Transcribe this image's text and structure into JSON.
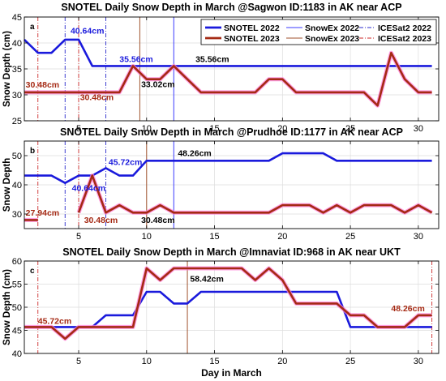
{
  "colors": {
    "snotel_2022": "#1a1adc",
    "snotel_2023": "#a52a14",
    "snowex_2022": "#3b3bff",
    "snowex_2023": "#a0522d",
    "icesat2_2022": "#2b2bcc",
    "icesat2_2023": "#cc2a2a",
    "snotel_2023_halo": "#ff7fd8"
  },
  "xlabel": "Day in March",
  "legend": [
    {
      "key": "snotel_2022",
      "label": "SNOTEL 2022",
      "style": "thick"
    },
    {
      "key": "snowex_2022",
      "label": "SnowEx 2022",
      "style": "thin"
    },
    {
      "key": "icesat2_2022",
      "label": "ICESat2 2022",
      "style": "dashdot"
    },
    {
      "key": "snotel_2023",
      "label": "SNOTEL 2023",
      "style": "thick"
    },
    {
      "key": "snowex_2023",
      "label": "SnowEx 2023",
      "style": "thin"
    },
    {
      "key": "icesat2_2023",
      "label": "ICESat2 2023",
      "style": "dashdot"
    }
  ],
  "chart_data": [
    {
      "type": "line",
      "panel_label": "a",
      "title": "SNOTEL Daily Snow Depth in March @Sagwon ID:1183 in AK near ACP",
      "ylabel": "Snow Depth (cm)",
      "xlim": [
        1,
        31.5
      ],
      "ylim": [
        25,
        45
      ],
      "xticks": [
        5,
        10,
        15,
        20,
        25,
        30
      ],
      "yticks": [
        25,
        30,
        35,
        40,
        45
      ],
      "grid": true,
      "legend_position": "top-right",
      "series": [
        {
          "name": "SNOTEL 2022",
          "key": "snotel_2022",
          "x": [
            1,
            2,
            3,
            4,
            5,
            6,
            7,
            8,
            9,
            10,
            11,
            12,
            13,
            14,
            15,
            16,
            17,
            18,
            19,
            20,
            21,
            22,
            23,
            24,
            25,
            26,
            27,
            28,
            29,
            30,
            31
          ],
          "y": [
            40.64,
            38.1,
            38.1,
            40.64,
            40.64,
            35.56,
            35.56,
            35.56,
            35.56,
            35.56,
            35.56,
            35.56,
            35.56,
            35.56,
            35.56,
            35.56,
            35.56,
            35.56,
            35.56,
            35.56,
            35.56,
            35.56,
            35.56,
            35.56,
            35.56,
            35.56,
            35.56,
            35.56,
            35.56,
            35.56,
            35.56
          ]
        },
        {
          "name": "SNOTEL 2023",
          "key": "snotel_2023",
          "x": [
            1,
            2,
            3,
            4,
            5,
            6,
            7,
            8,
            9,
            10,
            11,
            12,
            13,
            14,
            15,
            16,
            17,
            18,
            19,
            20,
            21,
            22,
            23,
            24,
            25,
            26,
            27,
            28,
            29,
            30,
            31
          ],
          "y": [
            30.48,
            30.48,
            30.48,
            30.48,
            30.48,
            30.48,
            30.48,
            30.48,
            35.56,
            33.02,
            33.02,
            35.56,
            33.02,
            30.48,
            30.48,
            30.48,
            30.48,
            30.48,
            33.02,
            33.02,
            30.48,
            30.48,
            30.48,
            30.48,
            30.48,
            30.48,
            27.94,
            38.1,
            33.02,
            30.48,
            30.48
          ]
        }
      ],
      "vlines": [
        {
          "key": "snowex_2022",
          "x": 12,
          "style": "thin"
        },
        {
          "key": "snowex_2023",
          "x": 9.5,
          "style": "thin"
        },
        {
          "key": "icesat2_2022",
          "x": 4,
          "style": "dashdot"
        },
        {
          "key": "icesat2_2022",
          "x": 7,
          "style": "dashdot"
        },
        {
          "key": "icesat2_2023",
          "x": 2,
          "style": "dashdot"
        },
        {
          "key": "icesat2_2023",
          "x": 5,
          "style": "dashdot"
        }
      ],
      "annotations": [
        {
          "text": "40.64cm",
          "x": 4.4,
          "y": 41.8,
          "key": "snotel_2022"
        },
        {
          "text": "35.56cm",
          "x": 8.0,
          "y": 36.3,
          "key": "snotel_2022"
        },
        {
          "text": "35.56cm",
          "x": 13.6,
          "y": 36.3,
          "key": "black"
        },
        {
          "text": "30.48cm",
          "x": 1.1,
          "y": 31.4,
          "key": "snotel_2023"
        },
        {
          "text": "30.48cm",
          "x": 5.1,
          "y": 29.0,
          "key": "snotel_2023"
        },
        {
          "text": "33.02cm",
          "x": 9.6,
          "y": 31.5,
          "key": "black"
        }
      ]
    },
    {
      "type": "line",
      "panel_label": "b",
      "title": "SNOTEL Daily Snow Depth in March @Prudhoe ID:1177 in AK near ACP",
      "ylabel": "Snow Depth",
      "xlim": [
        1,
        31.5
      ],
      "ylim": [
        25,
        55
      ],
      "xticks": [
        5,
        10,
        15,
        20,
        25,
        30
      ],
      "yticks": [
        30,
        40,
        50
      ],
      "grid": true,
      "series": [
        {
          "name": "SNOTEL 2022",
          "key": "snotel_2022",
          "x": [
            1,
            2,
            3,
            4,
            5,
            6,
            7,
            8,
            9,
            10,
            11,
            12,
            13,
            14,
            15,
            16,
            17,
            18,
            19,
            20,
            21,
            22,
            23,
            24,
            25,
            26,
            27,
            28,
            29,
            30,
            31
          ],
          "y": [
            43.18,
            43.18,
            43.18,
            40.64,
            43.18,
            43.18,
            45.72,
            43.18,
            43.18,
            48.26,
            48.26,
            48.26,
            48.26,
            48.26,
            48.26,
            48.26,
            48.26,
            48.26,
            48.26,
            50.8,
            50.8,
            50.8,
            50.8,
            48.26,
            48.26,
            48.26,
            48.26,
            48.26,
            48.26,
            48.26,
            48.26
          ]
        },
        {
          "name": "SNOTEL 2023",
          "key": "snotel_2023",
          "x": [
            5,
            6,
            7,
            8,
            9,
            10,
            11,
            12,
            13,
            14,
            15,
            16,
            17,
            18,
            19,
            20,
            21,
            22,
            23,
            24,
            25,
            26,
            27,
            28,
            29,
            30,
            31
          ],
          "y": [
            30.48,
            43.18,
            30.48,
            33.02,
            30.48,
            30.48,
            33.02,
            30.48,
            30.48,
            30.48,
            30.48,
            30.48,
            30.48,
            30.48,
            30.48,
            33.02,
            33.02,
            33.02,
            30.48,
            33.02,
            30.48,
            33.02,
            33.02,
            33.02,
            30.48,
            33.02,
            30.48
          ]
        },
        {
          "name": "",
          "key": "snotel_2023",
          "x": [
            1,
            2
          ],
          "y": [
            27.94,
            27.94
          ]
        }
      ],
      "vlines": [
        {
          "key": "snowex_2022",
          "x": 12,
          "style": "thin"
        },
        {
          "key": "snowex_2023",
          "x": 10,
          "style": "thin"
        },
        {
          "key": "icesat2_2022",
          "x": 4,
          "style": "dashdot"
        },
        {
          "key": "icesat2_2022",
          "x": 7,
          "style": "dashdot"
        },
        {
          "key": "icesat2_2023",
          "x": 2,
          "style": "dashdot"
        },
        {
          "key": "icesat2_2023",
          "x": 5,
          "style": "dashdot"
        }
      ],
      "annotations": [
        {
          "text": "48.26cm",
          "x": 12.3,
          "y": 49.8,
          "key": "black"
        },
        {
          "text": "45.72cm",
          "x": 7.2,
          "y": 46.8,
          "key": "snotel_2022"
        },
        {
          "text": "40.64cm",
          "x": 4.5,
          "y": 37.9,
          "key": "snotel_2022"
        },
        {
          "text": "27.94cm",
          "x": 1.1,
          "y": 29.5,
          "key": "snotel_2023"
        },
        {
          "text": "30.48cm",
          "x": 5.4,
          "y": 26.9,
          "key": "snotel_2023"
        },
        {
          "text": "30.48cm",
          "x": 9.6,
          "y": 26.9,
          "key": "black"
        }
      ]
    },
    {
      "type": "line",
      "panel_label": "c",
      "title": "SNOTEL Daily Snow Depth in March @Imnaviat ID:968 in AK near UKT",
      "ylabel": "Snow Depth (cm)",
      "xlabel": "Day in March",
      "xlim": [
        1,
        31.5
      ],
      "ylim": [
        40,
        60
      ],
      "xticks": [
        5,
        10,
        15,
        20,
        25,
        30
      ],
      "yticks": [
        40,
        45,
        50,
        55,
        60
      ],
      "grid": true,
      "series": [
        {
          "name": "SNOTEL 2022",
          "key": "snotel_2022",
          "x": [
            1,
            2,
            3,
            4,
            5,
            6,
            7,
            8,
            9,
            10,
            11,
            12,
            13,
            14,
            15,
            16,
            17,
            18,
            19,
            20,
            21,
            22,
            23,
            24,
            25,
            26,
            27,
            28,
            29,
            30,
            31
          ],
          "y": [
            45.72,
            45.72,
            45.72,
            45.72,
            45.72,
            45.72,
            48.26,
            48.26,
            48.26,
            53.34,
            53.34,
            50.8,
            50.8,
            53.34,
            53.34,
            53.34,
            53.34,
            53.34,
            53.34,
            53.34,
            53.34,
            53.34,
            53.34,
            53.34,
            45.72,
            45.72,
            45.72,
            45.72,
            45.72,
            45.72,
            45.72
          ]
        },
        {
          "name": "SNOTEL 2023",
          "key": "snotel_2023",
          "x": [
            1,
            2,
            3,
            4,
            5,
            6,
            7,
            8,
            9,
            10,
            11,
            12,
            13,
            14,
            15,
            16,
            17,
            18,
            19,
            20,
            21,
            22,
            23,
            24,
            25,
            26,
            27,
            28,
            29,
            30,
            31
          ],
          "y": [
            45.72,
            45.72,
            45.72,
            43.18,
            45.72,
            45.72,
            45.72,
            45.72,
            45.72,
            58.42,
            55.88,
            58.42,
            58.42,
            58.42,
            58.42,
            58.42,
            58.42,
            55.88,
            58.42,
            55.88,
            50.8,
            50.8,
            50.8,
            50.8,
            48.26,
            48.26,
            45.72,
            45.72,
            45.72,
            48.26,
            48.26
          ]
        }
      ],
      "vlines": [
        {
          "key": "snowex_2023",
          "x": 13,
          "style": "thin"
        },
        {
          "key": "icesat2_2023",
          "x": 2,
          "style": "dashdot"
        },
        {
          "key": "icesat2_2023",
          "x": 31,
          "style": "dashdot"
        }
      ],
      "annotations": [
        {
          "text": "58.42cm",
          "x": 13.2,
          "y": 55.5,
          "key": "black"
        },
        {
          "text": "45.72cm",
          "x": 2.0,
          "y": 46.4,
          "key": "snotel_2023"
        },
        {
          "text": "48.26cm",
          "x": 28.0,
          "y": 49.1,
          "key": "snotel_2023"
        }
      ]
    }
  ]
}
